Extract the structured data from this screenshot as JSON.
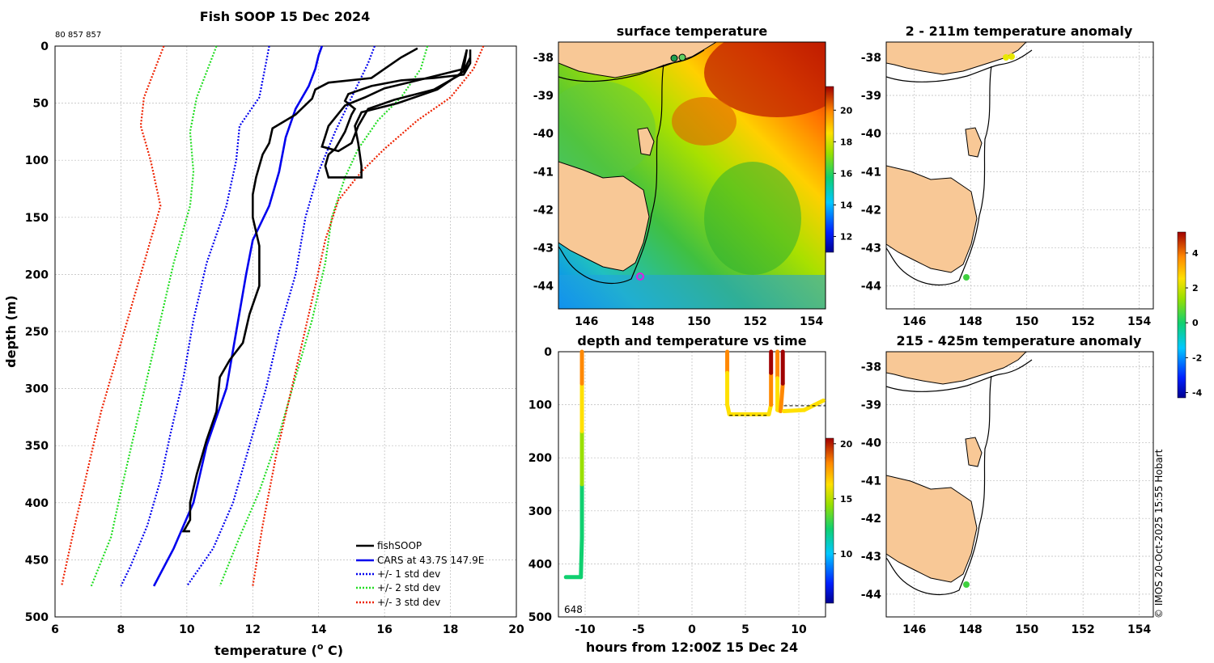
{
  "chart_data": [
    {
      "type": "line",
      "title": "Fish SOOP 15 Dec 2024",
      "id_text": "80 857 857",
      "xlabel": "temperature (",
      "xlabel_sup": "o",
      "xlabel_end": " C)",
      "ylabel": "depth (m)",
      "xlim": [
        6,
        20
      ],
      "ylim": [
        500,
        0
      ],
      "xticks": [
        "6",
        "8",
        "10",
        "12",
        "14",
        "16",
        "18",
        "20"
      ],
      "yticks": [
        "0",
        "50",
        "100",
        "150",
        "200",
        "250",
        "300",
        "350",
        "400",
        "450",
        "500"
      ],
      "legend": [
        "fishSOOP",
        "CARS at 43.7S 147.9E",
        "+/- 1 std dev",
        "+/- 2 std dev",
        "+/- 3 std dev"
      ],
      "series": [
        {
          "name": "CARS mean",
          "color": "#0000ee",
          "style": "solid",
          "points": [
            [
              14.1,
              0
            ],
            [
              14.0,
              8
            ],
            [
              13.9,
              20
            ],
            [
              13.7,
              35
            ],
            [
              13.3,
              55
            ],
            [
              13.0,
              80
            ],
            [
              12.8,
              110
            ],
            [
              12.5,
              140
            ],
            [
              12.0,
              170
            ],
            [
              11.8,
              200
            ],
            [
              11.5,
              250
            ],
            [
              11.2,
              300
            ],
            [
              10.6,
              350
            ],
            [
              10.2,
              400
            ],
            [
              9.6,
              440
            ],
            [
              9.0,
              473
            ]
          ]
        },
        {
          "name": "+1 std",
          "color": "#0000ee",
          "style": "dotted",
          "points": [
            [
              15.7,
              0
            ],
            [
              15.5,
              15
            ],
            [
              15.0,
              45
            ],
            [
              14.5,
              75
            ],
            [
              14.0,
              110
            ],
            [
              13.6,
              150
            ],
            [
              13.3,
              200
            ],
            [
              12.8,
              250
            ],
            [
              12.4,
              300
            ],
            [
              11.9,
              350
            ],
            [
              11.4,
              400
            ],
            [
              10.8,
              440
            ],
            [
              10.0,
              473
            ]
          ]
        },
        {
          "name": "-1 std",
          "color": "#0000ee",
          "style": "dotted",
          "points": [
            [
              12.5,
              0
            ],
            [
              12.4,
              15
            ],
            [
              12.2,
              45
            ],
            [
              11.6,
              70
            ],
            [
              11.5,
              100
            ],
            [
              11.2,
              140
            ],
            [
              10.6,
              190
            ],
            [
              10.2,
              240
            ],
            [
              9.9,
              290
            ],
            [
              9.5,
              340
            ],
            [
              9.2,
              380
            ],
            [
              8.8,
              420
            ],
            [
              8.3,
              455
            ],
            [
              8.0,
              473
            ]
          ]
        },
        {
          "name": "+2 std",
          "color": "#22dd22",
          "style": "dotted",
          "points": [
            [
              17.3,
              0
            ],
            [
              17.1,
              20
            ],
            [
              16.5,
              45
            ],
            [
              15.8,
              65
            ],
            [
              15.2,
              90
            ],
            [
              14.8,
              115
            ],
            [
              14.4,
              150
            ],
            [
              14.2,
              190
            ],
            [
              13.8,
              240
            ],
            [
              13.3,
              290
            ],
            [
              12.8,
              340
            ],
            [
              12.2,
              390
            ],
            [
              11.6,
              430
            ],
            [
              11.0,
              473
            ]
          ]
        },
        {
          "name": "-2 std",
          "color": "#22dd22",
          "style": "dotted",
          "points": [
            [
              10.9,
              0
            ],
            [
              10.7,
              15
            ],
            [
              10.3,
              45
            ],
            [
              10.1,
              75
            ],
            [
              10.2,
              110
            ],
            [
              10.1,
              140
            ],
            [
              9.6,
              190
            ],
            [
              9.2,
              240
            ],
            [
              8.8,
              290
            ],
            [
              8.4,
              340
            ],
            [
              8.0,
              390
            ],
            [
              7.7,
              430
            ],
            [
              7.1,
              473
            ]
          ]
        },
        {
          "name": "+3 std",
          "color": "#ee2200",
          "style": "dotted",
          "points": [
            [
              19.0,
              0
            ],
            [
              18.7,
              20
            ],
            [
              18.0,
              45
            ],
            [
              17.0,
              65
            ],
            [
              16.0,
              90
            ],
            [
              15.3,
              110
            ],
            [
              14.6,
              135
            ],
            [
              14.2,
              170
            ],
            [
              13.9,
              210
            ],
            [
              13.5,
              260
            ],
            [
              13.1,
              310
            ],
            [
              12.7,
              360
            ],
            [
              12.3,
              420
            ],
            [
              12.0,
              473
            ]
          ]
        },
        {
          "name": "-3 std",
          "color": "#ee2200",
          "style": "dotted",
          "points": [
            [
              9.3,
              0
            ],
            [
              9.1,
              15
            ],
            [
              8.7,
              45
            ],
            [
              8.6,
              70
            ],
            [
              8.9,
              100
            ],
            [
              9.2,
              140
            ],
            [
              8.8,
              180
            ],
            [
              8.4,
              220
            ],
            [
              7.9,
              270
            ],
            [
              7.4,
              320
            ],
            [
              7.0,
              370
            ],
            [
              6.6,
              420
            ],
            [
              6.2,
              473
            ]
          ]
        },
        {
          "name": "fishSOOP profile 1",
          "color": "#000000",
          "style": "solid",
          "points": [
            [
              18.6,
              3
            ],
            [
              18.6,
              15
            ],
            [
              18.4,
              25
            ],
            [
              17.5,
              28
            ],
            [
              16.5,
              30
            ],
            [
              15.6,
              35
            ],
            [
              14.9,
              42
            ],
            [
              14.8,
              48
            ],
            [
              15.1,
              55
            ],
            [
              15.0,
              60
            ],
            [
              14.8,
              75
            ],
            [
              14.5,
              90
            ],
            [
              14.3,
              95
            ],
            [
              14.2,
              105
            ],
            [
              14.3,
              115
            ],
            [
              15.3,
              115
            ],
            [
              15.3,
              105
            ],
            [
              15.2,
              85
            ],
            [
              15.1,
              70
            ],
            [
              15.3,
              58
            ],
            [
              16.4,
              50
            ],
            [
              17.6,
              38
            ],
            [
              18.4,
              22
            ],
            [
              18.6,
              10
            ],
            [
              18.6,
              3
            ]
          ]
        },
        {
          "name": "fishSOOP profile 2",
          "color": "#000000",
          "style": "solid",
          "points": [
            [
              18.5,
              3
            ],
            [
              18.4,
              20
            ],
            [
              17.0,
              30
            ],
            [
              16.0,
              37
            ],
            [
              15.4,
              45
            ],
            [
              14.8,
              52
            ],
            [
              14.3,
              70
            ],
            [
              14.1,
              88
            ],
            [
              14.6,
              92
            ],
            [
              15.0,
              85
            ],
            [
              15.2,
              70
            ],
            [
              15.5,
              55
            ],
            [
              16.3,
              47
            ],
            [
              17.5,
              38
            ],
            [
              18.3,
              25
            ],
            [
              18.5,
              3
            ]
          ]
        },
        {
          "name": "fishSOOP profile 3",
          "color": "#000000",
          "style": "solid",
          "points": [
            [
              17.0,
              2
            ],
            [
              16.5,
              10
            ],
            [
              16.0,
              20
            ],
            [
              15.6,
              28
            ],
            [
              14.3,
              32
            ],
            [
              13.9,
              38
            ],
            [
              13.8,
              46
            ],
            [
              13.3,
              60
            ],
            [
              12.6,
              72
            ],
            [
              12.5,
              85
            ],
            [
              12.3,
              95
            ],
            [
              12.2,
              105
            ],
            [
              12.1,
              115
            ],
            [
              12.0,
              130
            ],
            [
              12.0,
              150
            ],
            [
              12.2,
              175
            ],
            [
              12.2,
              200
            ],
            [
              12.2,
              210
            ],
            [
              11.9,
              235
            ],
            [
              11.7,
              260
            ],
            [
              11.3,
              275
            ],
            [
              11.0,
              290
            ],
            [
              10.9,
              320
            ],
            [
              10.6,
              345
            ],
            [
              10.3,
              375
            ],
            [
              10.1,
              400
            ],
            [
              10.1,
              415
            ],
            [
              9.9,
              425
            ],
            [
              10.1,
              425
            ]
          ]
        }
      ]
    },
    {
      "type": "heatmap",
      "title": "surface temperature",
      "xticks": [
        "146",
        "148",
        "150",
        "152",
        "154"
      ],
      "yticks": [
        "-38",
        "-39",
        "-40",
        "-41",
        "-42",
        "-43",
        "-44"
      ],
      "colorbar_ticks": [
        "20",
        "18",
        "16",
        "14",
        "12"
      ],
      "lon_range": [
        145,
        154.5
      ],
      "lat_range": [
        -44.6,
        -37.6
      ]
    },
    {
      "type": "scatter",
      "title": "depth and temperature vs time",
      "xlabel": "hours from 12:00Z 15 Dec 24",
      "xticks": [
        "-10",
        "-5",
        "0",
        "5",
        "10"
      ],
      "yticks": [
        "0",
        "100",
        "200",
        "300",
        "400",
        "500"
      ],
      "colorbar_ticks": [
        "20",
        "15",
        "10"
      ],
      "annotation": "648",
      "xlim": [
        -12.5,
        12.5
      ],
      "ylim": [
        500,
        0
      ]
    },
    {
      "type": "scatter",
      "title": "2 - 211m temperature anomaly",
      "xticks": [
        "146",
        "148",
        "150",
        "152",
        "154"
      ],
      "yticks": [
        "-38",
        "-39",
        "-40",
        "-41",
        "-42",
        "-43",
        "-44"
      ]
    },
    {
      "type": "scatter",
      "title": "215 - 425m temperature anomaly",
      "xticks": [
        "146",
        "148",
        "150",
        "152",
        "154"
      ],
      "yticks": [
        "-38",
        "-39",
        "-40",
        "-41",
        "-42",
        "-43",
        "-44"
      ]
    },
    {
      "type": "heatmap",
      "title": "anomaly colorbar",
      "colorbar_ticks": [
        "4",
        "2",
        "0",
        "-2",
        "-4"
      ]
    }
  ],
  "credit": "© IMOS 20-Oct-2025 15:55 Hobart"
}
